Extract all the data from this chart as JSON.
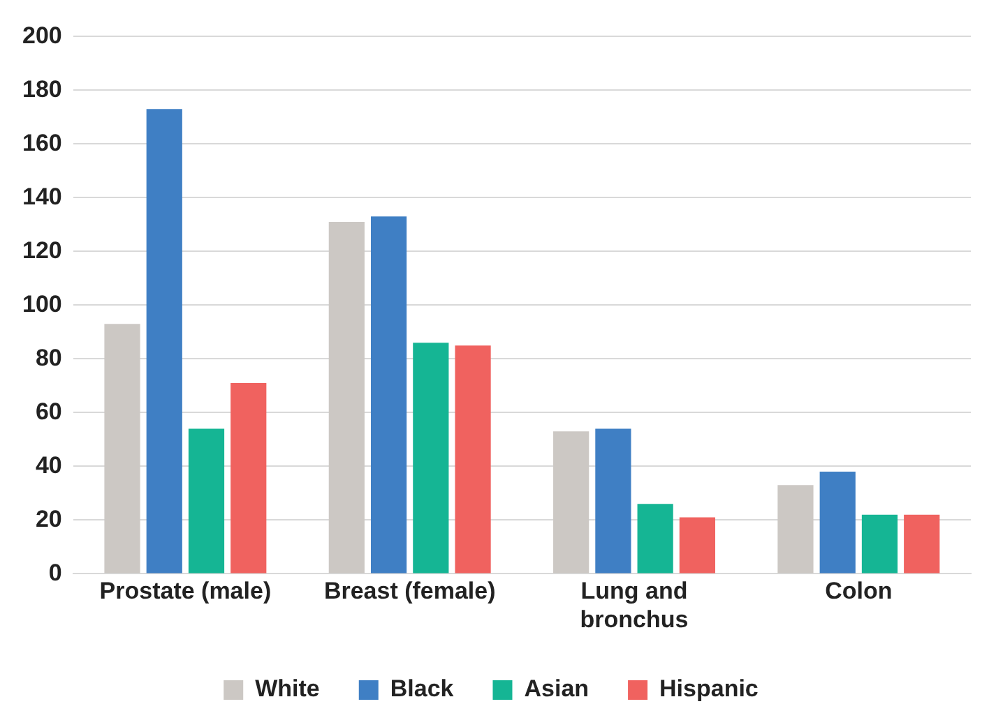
{
  "chart_data": {
    "type": "bar",
    "categories": [
      "Prostate (male)",
      "Breast (female)",
      "Lung and bronchus",
      "Colon"
    ],
    "series": [
      {
        "name": "White",
        "color": "#ccc8c4",
        "values": [
          93,
          131,
          53,
          33
        ]
      },
      {
        "name": "Black",
        "color": "#3f7fc4",
        "values": [
          173,
          133,
          54,
          38
        ]
      },
      {
        "name": "Asian",
        "color": "#15b594",
        "values": [
          54,
          86,
          26,
          22
        ]
      },
      {
        "name": "Hispanic",
        "color": "#f0625f",
        "values": [
          71,
          85,
          21,
          22
        ]
      }
    ],
    "ylim": [
      0,
      200
    ],
    "yticks": [
      0,
      20,
      40,
      60,
      80,
      100,
      120,
      140,
      160,
      180,
      200
    ],
    "grid": "y",
    "legend": "bottom"
  }
}
